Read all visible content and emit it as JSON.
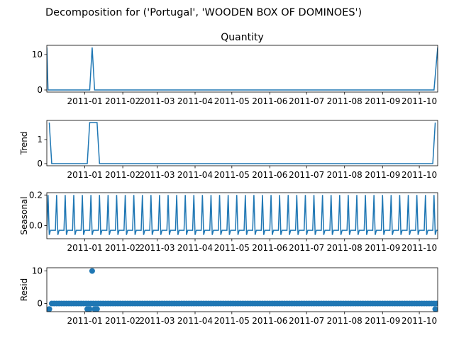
{
  "suptitle": "Decomposition for ('Portugal', 'WOODEN BOX OF DOMINOES')",
  "line_color": "#1f77b4",
  "chart_data": [
    {
      "type": "line",
      "name": "observed",
      "title": "Quantity",
      "ylabel": "",
      "ylim": [
        -0.6,
        12.6
      ],
      "yticks": [
        0,
        10
      ],
      "xlim": [
        "2010-12-01",
        "2011-10-16"
      ],
      "xticks": [
        "2011-01",
        "2011-02",
        "2011-03",
        "2011-04",
        "2011-05",
        "2011-06",
        "2011-07",
        "2011-08",
        "2011-09",
        "2011-10"
      ],
      "grid": false,
      "points": [
        {
          "x": "2010-12-01",
          "y": 12
        },
        {
          "x": "2010-12-02",
          "y": 0
        },
        {
          "x": "2011-01-05",
          "y": 0
        },
        {
          "x": "2011-01-07",
          "y": 12
        },
        {
          "x": "2011-01-09",
          "y": 0
        },
        {
          "x": "2011-10-13",
          "y": 0
        },
        {
          "x": "2011-10-16",
          "y": 12
        }
      ]
    },
    {
      "type": "line",
      "name": "trend",
      "title": "",
      "ylabel": "Trend",
      "ylim": [
        -0.09,
        1.8
      ],
      "yticks": [
        0,
        1
      ],
      "xlim": [
        "2010-12-01",
        "2011-10-16"
      ],
      "xticks": [
        "2011-01",
        "2011-02",
        "2011-03",
        "2011-04",
        "2011-05",
        "2011-06",
        "2011-07",
        "2011-08",
        "2011-09",
        "2011-10"
      ],
      "grid": false,
      "points": [
        {
          "x": "2010-12-03",
          "y": 1.71
        },
        {
          "x": "2010-12-05",
          "y": 0
        },
        {
          "x": "2011-01-03",
          "y": 0
        },
        {
          "x": "2011-01-05",
          "y": 1.71
        },
        {
          "x": "2011-01-11",
          "y": 1.71
        },
        {
          "x": "2011-01-13",
          "y": 0
        },
        {
          "x": "2011-10-12",
          "y": 0
        },
        {
          "x": "2011-10-14",
          "y": 1.71
        }
      ]
    },
    {
      "type": "line",
      "name": "seasonal",
      "title": "",
      "ylabel": "Seasonal",
      "ylim": [
        -0.085,
        0.215
      ],
      "yticks": [
        -0.0,
        0.2
      ],
      "ytick_labels": [
        "0.0",
        "0.2"
      ],
      "xlim": [
        "2010-12-01",
        "2011-10-16"
      ],
      "xticks": [
        "2011-01",
        "2011-02",
        "2011-03",
        "2011-04",
        "2011-05",
        "2011-06",
        "2011-07",
        "2011-08",
        "2011-09",
        "2011-10"
      ],
      "grid": false,
      "period_days": 7,
      "cycle": [
        -0.03,
        0.2,
        -0.06,
        -0.03,
        -0.03,
        -0.03,
        -0.03
      ]
    },
    {
      "type": "scatter",
      "name": "resid",
      "title": "",
      "ylabel": "Resid",
      "ylim": [
        -2.5,
        11
      ],
      "yticks": [
        0,
        10
      ],
      "xlim": [
        "2010-12-01",
        "2011-10-16"
      ],
      "xticks": [
        "2011-01",
        "2011-02",
        "2011-03",
        "2011-04",
        "2011-05",
        "2011-06",
        "2011-07",
        "2011-08",
        "2011-09",
        "2011-10"
      ],
      "grid": false,
      "baseline": 0,
      "step_days": 2,
      "outliers": [
        {
          "x": "2010-12-03",
          "y": -1.7
        },
        {
          "x": "2011-01-03",
          "y": -1.7
        },
        {
          "x": "2011-01-05",
          "y": -1.7
        },
        {
          "x": "2011-01-07",
          "y": 10
        },
        {
          "x": "2011-01-09",
          "y": -1.7
        },
        {
          "x": "2011-01-11",
          "y": -1.7
        },
        {
          "x": "2011-10-14",
          "y": -1.7
        }
      ]
    }
  ]
}
